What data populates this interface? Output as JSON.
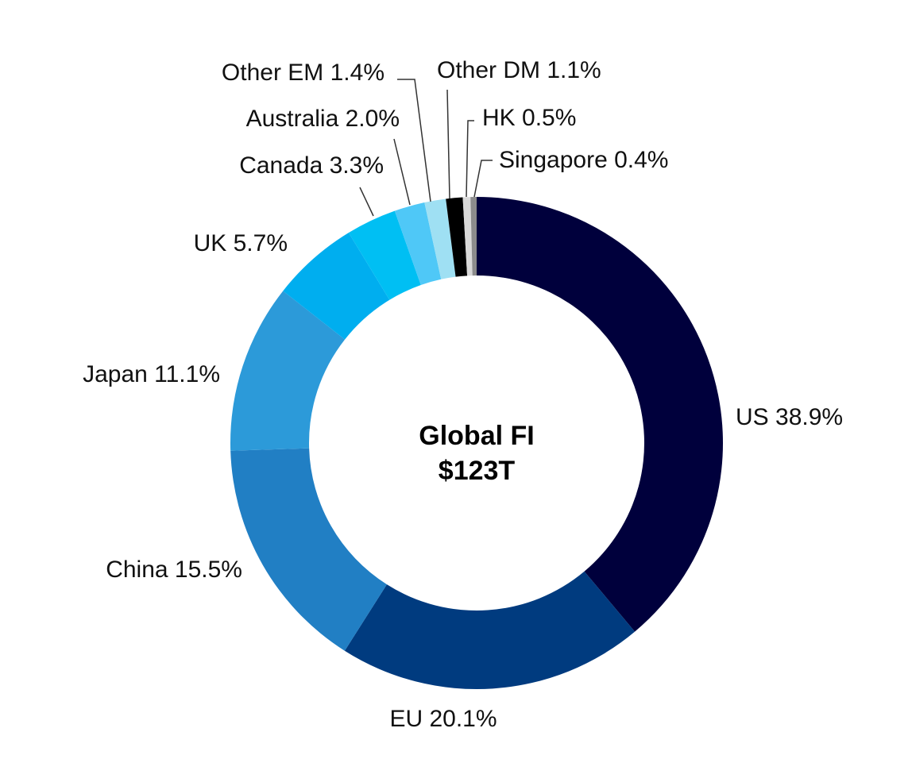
{
  "chart_data": {
    "type": "pie",
    "donut": true,
    "center_text": {
      "line1": "Global FI",
      "line2": "$123T"
    },
    "slices": [
      {
        "name": "US",
        "value": 38.9,
        "label": "US 38.9%",
        "color": "#00003c"
      },
      {
        "name": "EU",
        "value": 20.1,
        "label": "EU 20.1%",
        "color": "#003b7f"
      },
      {
        "name": "China",
        "value": 15.5,
        "label": "China 15.5%",
        "color": "#217fc4"
      },
      {
        "name": "Japan",
        "value": 11.1,
        "label": "Japan 11.1%",
        "color": "#2c9ad9"
      },
      {
        "name": "UK",
        "value": 5.7,
        "label": "UK 5.7%",
        "color": "#00aeef"
      },
      {
        "name": "Canada",
        "value": 3.3,
        "label": "Canada 3.3%",
        "color": "#00bff3"
      },
      {
        "name": "Australia",
        "value": 2.0,
        "label": "Australia 2.0%",
        "color": "#4fc8f7"
      },
      {
        "name": "Other EM",
        "value": 1.4,
        "label": "Other EM 1.4%",
        "color": "#9fe0f3"
      },
      {
        "name": "Other DM",
        "value": 1.1,
        "label": "Other DM 1.1%",
        "color": "#000000"
      },
      {
        "name": "HK",
        "value": 0.5,
        "label": "HK 0.5%",
        "color": "#d9d9d9"
      },
      {
        "name": "Singapore",
        "value": 0.4,
        "label": "Singapore 0.4%",
        "color": "#8c8c8c"
      }
    ]
  }
}
